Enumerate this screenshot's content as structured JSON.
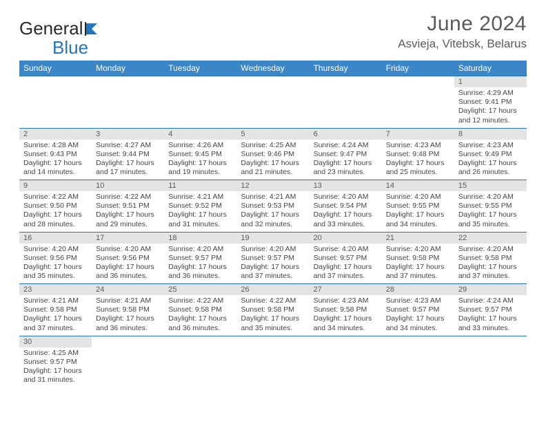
{
  "brand": {
    "g": "General",
    "b": "Blue"
  },
  "title": "June 2024",
  "location": "Asvieja, Vitebsk, Belarus",
  "colors": {
    "header_bg": "#3b86c6",
    "header_text": "#ffffff",
    "rule": "#2176bd",
    "daynum_bg": "#e4e4e4",
    "text": "#444444",
    "title_text": "#5a5a5a",
    "brand_accent": "#2176bd"
  },
  "typography": {
    "title_fontsize": 30,
    "location_fontsize": 17,
    "body_fontsize": 10.5,
    "header_fontsize": 12,
    "logo_fontsize": 26
  },
  "days": [
    "Sunday",
    "Monday",
    "Tuesday",
    "Wednesday",
    "Thursday",
    "Friday",
    "Saturday"
  ],
  "weeks": [
    [
      null,
      null,
      null,
      null,
      null,
      null,
      {
        "n": "1",
        "sr": "Sunrise: 4:29 AM",
        "ss": "Sunset: 9:41 PM",
        "d1": "Daylight: 17 hours",
        "d2": "and 12 minutes."
      }
    ],
    [
      {
        "n": "2",
        "sr": "Sunrise: 4:28 AM",
        "ss": "Sunset: 9:43 PM",
        "d1": "Daylight: 17 hours",
        "d2": "and 14 minutes."
      },
      {
        "n": "3",
        "sr": "Sunrise: 4:27 AM",
        "ss": "Sunset: 9:44 PM",
        "d1": "Daylight: 17 hours",
        "d2": "and 17 minutes."
      },
      {
        "n": "4",
        "sr": "Sunrise: 4:26 AM",
        "ss": "Sunset: 9:45 PM",
        "d1": "Daylight: 17 hours",
        "d2": "and 19 minutes."
      },
      {
        "n": "5",
        "sr": "Sunrise: 4:25 AM",
        "ss": "Sunset: 9:46 PM",
        "d1": "Daylight: 17 hours",
        "d2": "and 21 minutes."
      },
      {
        "n": "6",
        "sr": "Sunrise: 4:24 AM",
        "ss": "Sunset: 9:47 PM",
        "d1": "Daylight: 17 hours",
        "d2": "and 23 minutes."
      },
      {
        "n": "7",
        "sr": "Sunrise: 4:23 AM",
        "ss": "Sunset: 9:48 PM",
        "d1": "Daylight: 17 hours",
        "d2": "and 25 minutes."
      },
      {
        "n": "8",
        "sr": "Sunrise: 4:23 AM",
        "ss": "Sunset: 9:49 PM",
        "d1": "Daylight: 17 hours",
        "d2": "and 26 minutes."
      }
    ],
    [
      {
        "n": "9",
        "sr": "Sunrise: 4:22 AM",
        "ss": "Sunset: 9:50 PM",
        "d1": "Daylight: 17 hours",
        "d2": "and 28 minutes."
      },
      {
        "n": "10",
        "sr": "Sunrise: 4:22 AM",
        "ss": "Sunset: 9:51 PM",
        "d1": "Daylight: 17 hours",
        "d2": "and 29 minutes."
      },
      {
        "n": "11",
        "sr": "Sunrise: 4:21 AM",
        "ss": "Sunset: 9:52 PM",
        "d1": "Daylight: 17 hours",
        "d2": "and 31 minutes."
      },
      {
        "n": "12",
        "sr": "Sunrise: 4:21 AM",
        "ss": "Sunset: 9:53 PM",
        "d1": "Daylight: 17 hours",
        "d2": "and 32 minutes."
      },
      {
        "n": "13",
        "sr": "Sunrise: 4:20 AM",
        "ss": "Sunset: 9:54 PM",
        "d1": "Daylight: 17 hours",
        "d2": "and 33 minutes."
      },
      {
        "n": "14",
        "sr": "Sunrise: 4:20 AM",
        "ss": "Sunset: 9:55 PM",
        "d1": "Daylight: 17 hours",
        "d2": "and 34 minutes."
      },
      {
        "n": "15",
        "sr": "Sunrise: 4:20 AM",
        "ss": "Sunset: 9:55 PM",
        "d1": "Daylight: 17 hours",
        "d2": "and 35 minutes."
      }
    ],
    [
      {
        "n": "16",
        "sr": "Sunrise: 4:20 AM",
        "ss": "Sunset: 9:56 PM",
        "d1": "Daylight: 17 hours",
        "d2": "and 35 minutes."
      },
      {
        "n": "17",
        "sr": "Sunrise: 4:20 AM",
        "ss": "Sunset: 9:56 PM",
        "d1": "Daylight: 17 hours",
        "d2": "and 36 minutes."
      },
      {
        "n": "18",
        "sr": "Sunrise: 4:20 AM",
        "ss": "Sunset: 9:57 PM",
        "d1": "Daylight: 17 hours",
        "d2": "and 36 minutes."
      },
      {
        "n": "19",
        "sr": "Sunrise: 4:20 AM",
        "ss": "Sunset: 9:57 PM",
        "d1": "Daylight: 17 hours",
        "d2": "and 37 minutes."
      },
      {
        "n": "20",
        "sr": "Sunrise: 4:20 AM",
        "ss": "Sunset: 9:57 PM",
        "d1": "Daylight: 17 hours",
        "d2": "and 37 minutes."
      },
      {
        "n": "21",
        "sr": "Sunrise: 4:20 AM",
        "ss": "Sunset: 9:58 PM",
        "d1": "Daylight: 17 hours",
        "d2": "and 37 minutes."
      },
      {
        "n": "22",
        "sr": "Sunrise: 4:20 AM",
        "ss": "Sunset: 9:58 PM",
        "d1": "Daylight: 17 hours",
        "d2": "and 37 minutes."
      }
    ],
    [
      {
        "n": "23",
        "sr": "Sunrise: 4:21 AM",
        "ss": "Sunset: 9:58 PM",
        "d1": "Daylight: 17 hours",
        "d2": "and 37 minutes."
      },
      {
        "n": "24",
        "sr": "Sunrise: 4:21 AM",
        "ss": "Sunset: 9:58 PM",
        "d1": "Daylight: 17 hours",
        "d2": "and 36 minutes."
      },
      {
        "n": "25",
        "sr": "Sunrise: 4:22 AM",
        "ss": "Sunset: 9:58 PM",
        "d1": "Daylight: 17 hours",
        "d2": "and 36 minutes."
      },
      {
        "n": "26",
        "sr": "Sunrise: 4:22 AM",
        "ss": "Sunset: 9:58 PM",
        "d1": "Daylight: 17 hours",
        "d2": "and 35 minutes."
      },
      {
        "n": "27",
        "sr": "Sunrise: 4:23 AM",
        "ss": "Sunset: 9:58 PM",
        "d1": "Daylight: 17 hours",
        "d2": "and 34 minutes."
      },
      {
        "n": "28",
        "sr": "Sunrise: 4:23 AM",
        "ss": "Sunset: 9:57 PM",
        "d1": "Daylight: 17 hours",
        "d2": "and 34 minutes."
      },
      {
        "n": "29",
        "sr": "Sunrise: 4:24 AM",
        "ss": "Sunset: 9:57 PM",
        "d1": "Daylight: 17 hours",
        "d2": "and 33 minutes."
      }
    ],
    [
      {
        "n": "30",
        "sr": "Sunrise: 4:25 AM",
        "ss": "Sunset: 9:57 PM",
        "d1": "Daylight: 17 hours",
        "d2": "and 31 minutes."
      },
      null,
      null,
      null,
      null,
      null,
      null
    ]
  ]
}
